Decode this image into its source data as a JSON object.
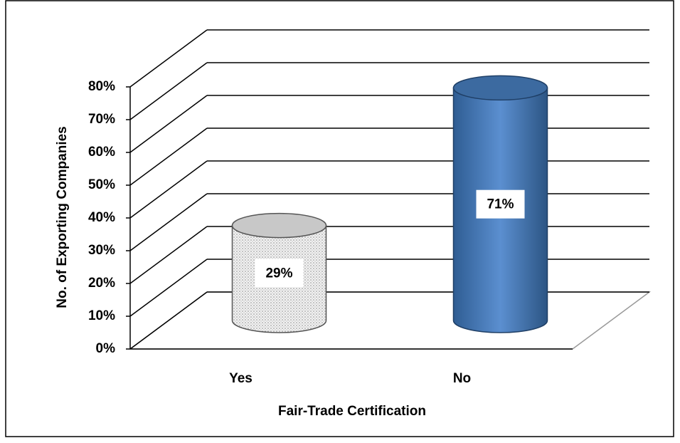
{
  "chart_data": {
    "type": "bar",
    "categories": [
      "Yes",
      "No"
    ],
    "values": [
      29,
      71
    ],
    "value_labels": [
      "29%",
      "71%"
    ],
    "colors": [
      "#d9d9d9",
      "#4f81bd"
    ],
    "ylim": [
      0,
      80
    ],
    "yticks": [
      {
        "value": 0,
        "label": "0%"
      },
      {
        "value": 10,
        "label": "10%"
      },
      {
        "value": 20,
        "label": "20%"
      },
      {
        "value": 30,
        "label": "30%"
      },
      {
        "value": 40,
        "label": "40%"
      },
      {
        "value": 50,
        "label": "50%"
      },
      {
        "value": 60,
        "label": "60%"
      },
      {
        "value": 70,
        "label": "70%"
      },
      {
        "value": 80,
        "label": "80%"
      }
    ],
    "y_label": "No. of Exporting Companies",
    "x_label": "Fair-Trade Certification",
    "grid": true
  }
}
